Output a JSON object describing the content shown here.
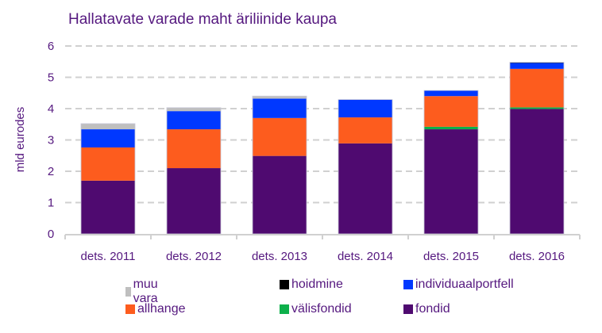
{
  "chart_data": {
    "type": "bar",
    "stacked": true,
    "title": "Hallatavate varade maht äriliinide kaupa",
    "xlabel": "",
    "ylabel": "mld eurodes",
    "ylim": [
      0,
      6
    ],
    "yticks": [
      0,
      1,
      2,
      3,
      4,
      5,
      6
    ],
    "grid": true,
    "legend_position": "bottom",
    "categories": [
      "dets. 2011",
      "dets. 2012",
      "dets. 2013",
      "dets. 2014",
      "dets. 2015",
      "dets. 2016"
    ],
    "series": [
      {
        "name": "fondid",
        "color": "#4f0a70",
        "values": [
          1.7,
          2.1,
          2.49,
          2.89,
          3.34,
          3.99
        ]
      },
      {
        "name": "välisfondid",
        "color": "#0db04b",
        "values": [
          0.0,
          0.0,
          0.0,
          0.0,
          0.08,
          0.05
        ]
      },
      {
        "name": "allhange",
        "color": "#fd5c1e",
        "values": [
          1.06,
          1.24,
          1.21,
          0.83,
          0.98,
          1.23
        ]
      },
      {
        "name": "individuaalportfell",
        "color": "#0038ff",
        "values": [
          0.58,
          0.58,
          0.62,
          0.57,
          0.18,
          0.19
        ]
      },
      {
        "name": "hoidmine",
        "color": "#000000",
        "values": [
          0.0,
          0.0,
          0.0,
          0.0,
          0.0,
          0.02
        ]
      },
      {
        "name": "muu vara",
        "color": "#bfbfbf",
        "values": [
          0.18,
          0.11,
          0.08,
          0.0,
          0.0,
          0.0
        ]
      }
    ],
    "legend_order": [
      "muu vara",
      "hoidmine",
      "individuaalportfell",
      "allhange",
      "välisfondid",
      "fondid"
    ]
  }
}
